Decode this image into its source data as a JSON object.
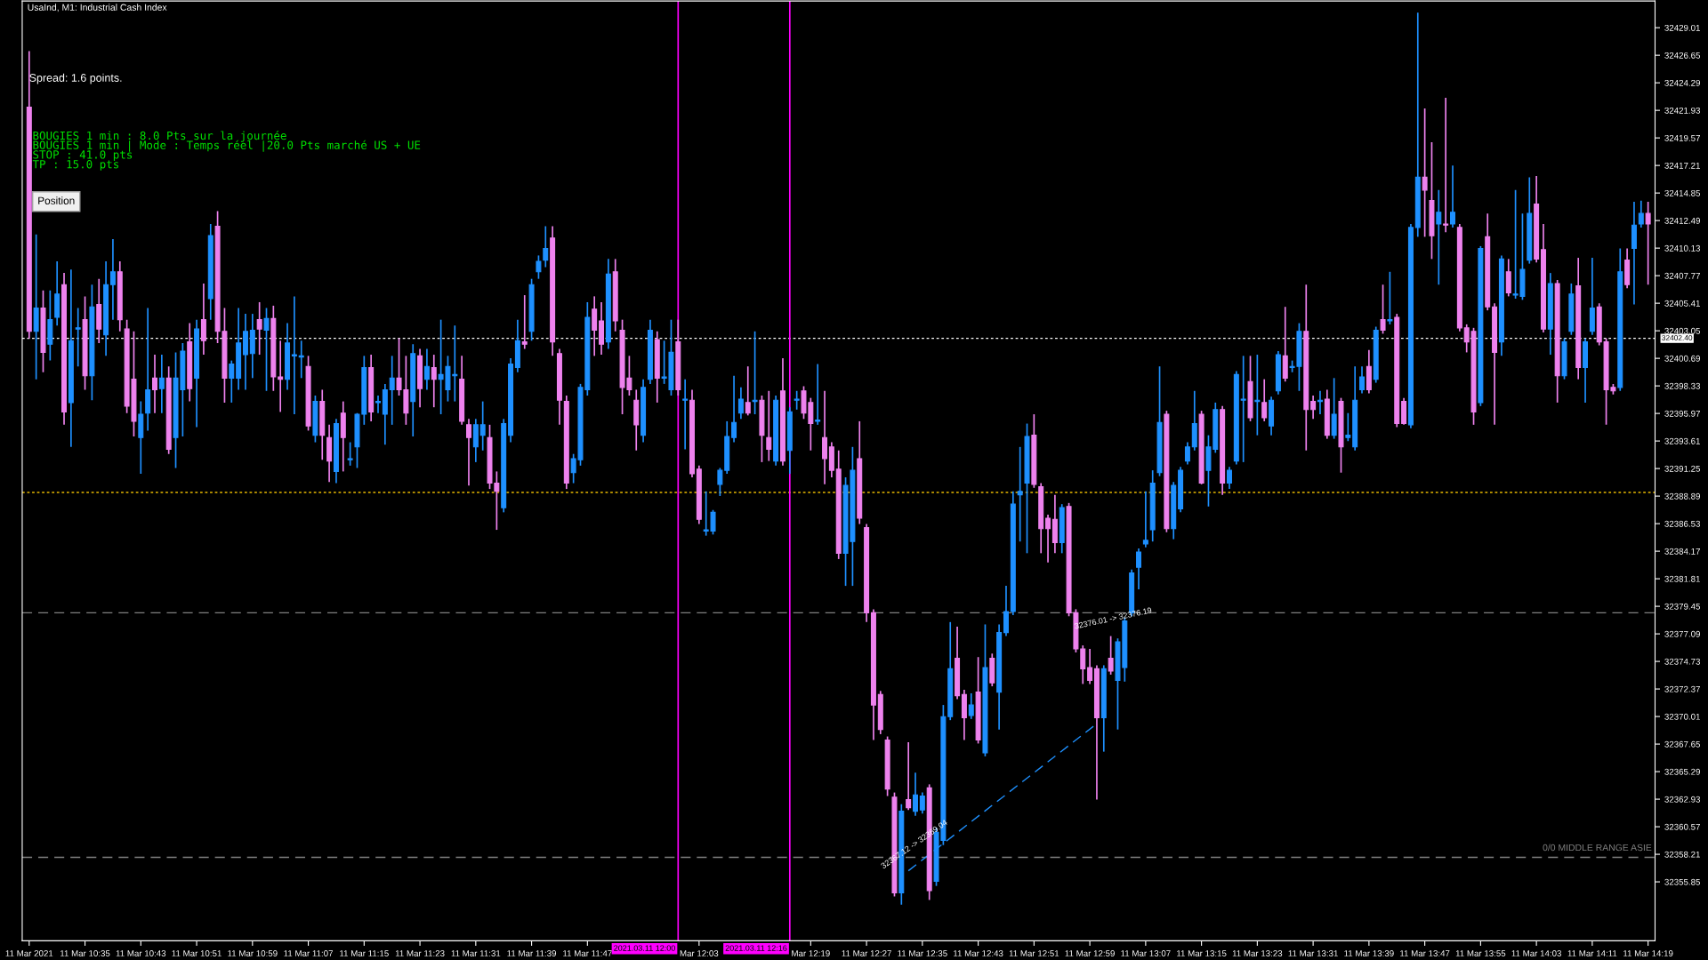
{
  "chart_data": {
    "type": "candlestick",
    "title": "UsaInd, M1: Industrial Cash Index",
    "annotations": [
      "Spread: 1.6 points.",
      "BOUGIES 1 min : 8.0 Pts sur la journée",
      "BOUGIES 1 min | Mode : Temps réel |20.0 Pts marché US + UE",
      "STOP : 41.0 pts",
      "TP : 15.0 pts",
      "Position",
      "32367.12 -> 32369.04",
      "32376.01 -> 32376.19"
    ],
    "x": [
      "2021-03-11T10:27",
      "2021-03-11T10:28",
      "2021-03-11T10:29",
      "2021-03-11T10:30",
      "2021-03-11T10:31",
      "2021-03-11T10:32",
      "2021-03-11T10:33",
      "2021-03-11T10:34",
      "2021-03-11T10:35",
      "2021-03-11T10:36",
      "2021-03-11T10:37",
      "2021-03-11T10:38",
      "2021-03-11T10:39",
      "2021-03-11T10:40",
      "2021-03-11T10:41",
      "2021-03-11T10:42",
      "2021-03-11T10:43",
      "2021-03-11T10:44",
      "2021-03-11T10:45",
      "2021-03-11T10:46",
      "2021-03-11T10:47",
      "2021-03-11T10:48",
      "2021-03-11T10:49",
      "2021-03-11T10:50",
      "2021-03-11T10:51",
      "2021-03-11T10:52",
      "2021-03-11T10:53",
      "2021-03-11T10:54",
      "2021-03-11T10:55",
      "2021-03-11T10:56",
      "2021-03-11T10:57",
      "2021-03-11T10:58",
      "2021-03-11T10:59",
      "2021-03-11T11:00",
      "2021-03-11T11:01",
      "2021-03-11T11:02",
      "2021-03-11T11:03",
      "2021-03-11T11:04",
      "2021-03-11T11:05",
      "2021-03-11T11:06",
      "2021-03-11T11:07",
      "2021-03-11T11:08",
      "2021-03-11T11:09",
      "2021-03-11T11:10",
      "2021-03-11T11:11",
      "2021-03-11T11:12",
      "2021-03-11T11:13",
      "2021-03-11T11:14",
      "2021-03-11T11:15",
      "2021-03-11T11:16",
      "2021-03-11T11:17",
      "2021-03-11T11:18",
      "2021-03-11T11:19",
      "2021-03-11T11:20",
      "2021-03-11T11:21",
      "2021-03-11T11:22",
      "2021-03-11T11:23",
      "2021-03-11T11:24",
      "2021-03-11T11:25",
      "2021-03-11T11:26",
      "2021-03-11T11:27",
      "2021-03-11T11:28",
      "2021-03-11T11:29",
      "2021-03-11T11:30",
      "2021-03-11T11:31",
      "2021-03-11T11:32",
      "2021-03-11T11:33",
      "2021-03-11T11:34",
      "2021-03-11T11:35",
      "2021-03-11T11:36",
      "2021-03-11T11:37",
      "2021-03-11T11:38",
      "2021-03-11T11:39",
      "2021-03-11T11:40",
      "2021-03-11T11:41",
      "2021-03-11T11:42",
      "2021-03-11T11:43",
      "2021-03-11T11:44",
      "2021-03-11T11:45",
      "2021-03-11T11:46",
      "2021-03-11T11:47",
      "2021-03-11T11:48",
      "2021-03-11T11:49",
      "2021-03-11T11:50",
      "2021-03-11T11:51",
      "2021-03-11T11:52",
      "2021-03-11T11:53",
      "2021-03-11T11:54",
      "2021-03-11T11:55",
      "2021-03-11T11:56",
      "2021-03-11T11:57",
      "2021-03-11T11:58",
      "2021-03-11T11:59",
      "2021-03-11T12:00",
      "2021-03-11T12:01",
      "2021-03-11T12:02",
      "2021-03-11T12:03",
      "2021-03-11T12:04",
      "2021-03-11T12:05",
      "2021-03-11T12:06",
      "2021-03-11T12:07",
      "2021-03-11T12:08",
      "2021-03-11T12:09",
      "2021-03-11T12:10",
      "2021-03-11T12:11",
      "2021-03-11T12:12",
      "2021-03-11T12:13",
      "2021-03-11T12:14",
      "2021-03-11T12:15",
      "2021-03-11T12:16",
      "2021-03-11T12:17",
      "2021-03-11T12:18",
      "2021-03-11T12:19",
      "2021-03-11T12:20",
      "2021-03-11T12:21",
      "2021-03-11T12:22",
      "2021-03-11T12:23",
      "2021-03-11T12:24",
      "2021-03-11T12:25",
      "2021-03-11T12:26",
      "2021-03-11T12:27",
      "2021-03-11T12:28",
      "2021-03-11T12:29",
      "2021-03-11T12:30",
      "2021-03-11T12:31",
      "2021-03-11T12:32",
      "2021-03-11T12:33",
      "2021-03-11T12:34",
      "2021-03-11T12:35",
      "2021-03-11T12:36",
      "2021-03-11T12:37",
      "2021-03-11T12:38",
      "2021-03-11T12:39",
      "2021-03-11T12:40",
      "2021-03-11T12:41",
      "2021-03-11T12:42",
      "2021-03-11T12:43",
      "2021-03-11T12:44",
      "2021-03-11T12:45",
      "2021-03-11T12:46",
      "2021-03-11T12:47",
      "2021-03-11T12:48",
      "2021-03-11T12:49",
      "2021-03-11T12:50",
      "2021-03-11T12:51",
      "2021-03-11T12:52",
      "2021-03-11T12:53",
      "2021-03-11T12:54",
      "2021-03-11T12:55",
      "2021-03-11T12:56",
      "2021-03-11T12:57",
      "2021-03-11T12:58",
      "2021-03-11T12:59",
      "2021-03-11T13:00",
      "2021-03-11T13:01",
      "2021-03-11T13:02",
      "2021-03-11T13:03",
      "2021-03-11T13:04",
      "2021-03-11T13:05",
      "2021-03-11T13:06",
      "2021-03-11T13:07",
      "2021-03-11T13:08",
      "2021-03-11T13:09",
      "2021-03-11T13:10",
      "2021-03-11T13:11",
      "2021-03-11T13:12",
      "2021-03-11T13:13",
      "2021-03-11T13:14",
      "2021-03-11T13:15",
      "2021-03-11T13:16",
      "2021-03-11T13:17",
      "2021-03-11T13:18",
      "2021-03-11T13:19",
      "2021-03-11T13:20",
      "2021-03-11T13:21",
      "2021-03-11T13:22",
      "2021-03-11T13:23",
      "2021-03-11T13:24",
      "2021-03-11T13:25",
      "2021-03-11T13:26",
      "2021-03-11T13:27",
      "2021-03-11T13:28",
      "2021-03-11T13:29",
      "2021-03-11T13:30",
      "2021-03-11T13:31",
      "2021-03-11T13:32",
      "2021-03-11T13:33",
      "2021-03-11T13:34",
      "2021-03-11T13:35",
      "2021-03-11T13:36",
      "2021-03-11T13:37",
      "2021-03-11T13:38",
      "2021-03-11T13:39",
      "2021-03-11T13:40",
      "2021-03-11T13:41",
      "2021-03-11T13:42",
      "2021-03-11T13:43",
      "2021-03-11T13:44",
      "2021-03-11T13:45",
      "2021-03-11T13:46",
      "2021-03-11T13:47",
      "2021-03-11T13:48",
      "2021-03-11T13:49",
      "2021-03-11T13:50",
      "2021-03-11T13:51",
      "2021-03-11T13:52",
      "2021-03-11T13:53",
      "2021-03-11T13:54",
      "2021-03-11T13:55",
      "2021-03-11T13:56",
      "2021-03-11T13:57",
      "2021-03-11T13:58",
      "2021-03-11T13:59",
      "2021-03-11T14:00",
      "2021-03-11T14:01",
      "2021-03-11T14:02",
      "2021-03-11T14:03",
      "2021-03-11T14:04",
      "2021-03-11T14:05",
      "2021-03-11T14:06",
      "2021-03-11T14:07",
      "2021-03-11T14:08",
      "2021-03-11T14:09",
      "2021-03-11T14:10",
      "2021-03-11T14:11",
      "2021-03-11T14:12",
      "2021-03-11T14:13",
      "2021-03-11T14:14",
      "2021-03-11T14:15",
      "2021-03-11T14:16",
      "2021-03-11T14:17",
      "2021-03-11T14:18",
      "2021-03-11T14:19"
    ],
    "xlim": [
      "2021-03-11T10:26",
      "2021-03-11T14:20"
    ],
    "xticks": [
      {
        "value": "2021-03-11T10:27",
        "label": "11 Mar 2021"
      },
      {
        "value": "2021-03-11T10:35",
        "label": "11 Mar 10:35"
      },
      {
        "value": "2021-03-11T10:43",
        "label": "11 Mar 10:43"
      },
      {
        "value": "2021-03-11T10:51",
        "label": "11 Mar 10:51"
      },
      {
        "value": "2021-03-11T10:59",
        "label": "11 Mar 10:59"
      },
      {
        "value": "2021-03-11T11:07",
        "label": "11 Mar 11:07"
      },
      {
        "value": "2021-03-11T11:15",
        "label": "11 Mar 11:15"
      },
      {
        "value": "2021-03-11T11:23",
        "label": "11 Mar 11:23"
      },
      {
        "value": "2021-03-11T11:31",
        "label": "11 Mar 11:31"
      },
      {
        "value": "2021-03-11T11:39",
        "label": "11 Mar 11:39"
      },
      {
        "value": "2021-03-11T11:47",
        "label": "11 Mar 11:47"
      },
      {
        "value": "2021-03-11T12:03",
        "label": "Mar 12:03"
      },
      {
        "value": "2021-03-11T12:19",
        "label": "Mar 12:19"
      },
      {
        "value": "2021-03-11T12:27",
        "label": "11 Mar 12:27"
      },
      {
        "value": "2021-03-11T12:35",
        "label": "11 Mar 12:35"
      },
      {
        "value": "2021-03-11T12:43",
        "label": "11 Mar 12:43"
      },
      {
        "value": "2021-03-11T12:51",
        "label": "11 Mar 12:51"
      },
      {
        "value": "2021-03-11T12:59",
        "label": "11 Mar 12:59"
      },
      {
        "value": "2021-03-11T13:07",
        "label": "11 Mar 13:07"
      },
      {
        "value": "2021-03-11T13:15",
        "label": "11 Mar 13:15"
      },
      {
        "value": "2021-03-11T13:23",
        "label": "11 Mar 13:23"
      },
      {
        "value": "2021-03-11T13:31",
        "label": "11 Mar 13:31"
      },
      {
        "value": "2021-03-11T13:39",
        "label": "11 Mar 13:39"
      },
      {
        "value": "2021-03-11T13:47",
        "label": "11 Mar 13:47"
      },
      {
        "value": "2021-03-11T13:55",
        "label": "11 Mar 13:55"
      },
      {
        "value": "2021-03-11T14:03",
        "label": "11 Mar 14:03"
      },
      {
        "value": "2021-03-11T14:11",
        "label": "11 Mar 14:11"
      },
      {
        "value": "2021-03-11T14:19",
        "label": "11 Mar 14:19"
      }
    ],
    "ylim": [
      32350.8,
      32431.3
    ],
    "yticks": [
      32429.01,
      32426.65,
      32424.29,
      32421.93,
      32419.57,
      32417.21,
      32414.85,
      32412.49,
      32410.13,
      32407.77,
      32405.41,
      32403.05,
      32400.69,
      32398.33,
      32395.97,
      32393.61,
      32391.25,
      32388.89,
      32386.53,
      32384.17,
      32381.81,
      32379.45,
      32377.09,
      32374.73,
      32372.37,
      32370.01,
      32367.65,
      32365.29,
      32362.93,
      32360.57,
      32358.21,
      32355.85
    ],
    "grid": false,
    "legend": false,
    "ref_lines": [
      {
        "axis": "y",
        "value": 32402.4,
        "label": "32402.40",
        "color": "#ffffff",
        "line_style": "dotted"
      },
      {
        "axis": "y",
        "value": 32389.2,
        "color": "#e6b800",
        "line_style": "dotted"
      },
      {
        "axis": "y",
        "value": 32378.9,
        "color": "#808080",
        "line_style": "dashed"
      },
      {
        "axis": "y",
        "value": 32357.95,
        "label": "0/0 MIDDLE RANGE ASIE",
        "color": "#808080",
        "line_style": "dashed"
      },
      {
        "axis": "x",
        "value": "2021-03-11T12:00",
        "label": "2021.03.11 12:00",
        "color": "#ff00ff",
        "line_style": "solid"
      },
      {
        "axis": "x",
        "value": "2021-03-11T12:16",
        "label": "2021.03.11 12:16",
        "color": "#ff00ff",
        "line_style": "solid"
      }
    ],
    "series": [
      {
        "type": "line",
        "color": "#1e90ff",
        "line_style": "dashed",
        "x": [
          "2021-03-11T12:33",
          "2021-03-11T13:00"
        ],
        "values": [
          32356.8,
          32369.4
        ]
      }
    ],
    "ohlc": [
      [
        32422.2,
        32427.0,
        32402.4,
        32403.0
      ],
      [
        32403.0,
        32411.3,
        32398.9,
        32405.0
      ],
      [
        32405.0,
        32406.5,
        32399.5,
        32401.2
      ],
      [
        32401.9,
        32406.5,
        32400.5,
        32404.0
      ],
      [
        32404.2,
        32409.0,
        32403.5,
        32406.2
      ],
      [
        32407.0,
        32408.0,
        32395.0,
        32396.1
      ],
      [
        32396.9,
        32408.3,
        32393.1,
        32402.2
      ],
      [
        32403.2,
        32405.0,
        32400.0,
        32403.3
      ],
      [
        32404.0,
        32406.0,
        32398.0,
        32399.2
      ],
      [
        32399.2,
        32407.0,
        32397.1,
        32405.1
      ],
      [
        32405.3,
        32407.5,
        32402.0,
        32403.2
      ],
      [
        32402.7,
        32409.0,
        32400.9,
        32407.0
      ],
      [
        32407.0,
        32410.9,
        32404.0,
        32408.1
      ],
      [
        32408.1,
        32409.0,
        32403.0,
        32404.0
      ],
      [
        32403.2,
        32404.0,
        32396.0,
        32396.6
      ],
      [
        32398.9,
        32403.0,
        32394.0,
        32395.3
      ],
      [
        32393.9,
        32397.0,
        32390.8,
        32395.9
      ],
      [
        32396.0,
        32405.0,
        32394.5,
        32398.0
      ],
      [
        32399.0,
        32401.0,
        32396.0,
        32398.0
      ],
      [
        32398.1,
        32401.0,
        32396.0,
        32399.0
      ],
      [
        32399.0,
        32400.0,
        32392.5,
        32392.9
      ],
      [
        32393.9,
        32401.2,
        32391.3,
        32399.0
      ],
      [
        32398.0,
        32402.0,
        32394.0,
        32401.3
      ],
      [
        32402.1,
        32403.7,
        32397.0,
        32398.1
      ],
      [
        32399.0,
        32404.0,
        32394.8,
        32403.2
      ],
      [
        32404.0,
        32407.1,
        32401.0,
        32402.2
      ],
      [
        32405.8,
        32412.2,
        32404.0,
        32411.2
      ],
      [
        32412.0,
        32413.3,
        32402.0,
        32403.0
      ],
      [
        32403.0,
        32405.0,
        32396.9,
        32399.0
      ],
      [
        32399.0,
        32400.5,
        32396.9,
        32400.2
      ],
      [
        32399.0,
        32405.0,
        32398.0,
        32402.0
      ],
      [
        32401.0,
        32404.5,
        32398.0,
        32403.0
      ],
      [
        32401.1,
        32404.5,
        32399.0,
        32403.1
      ],
      [
        32404.0,
        32405.5,
        32401.0,
        32403.2
      ],
      [
        32403.1,
        32405.0,
        32397.9,
        32404.1
      ],
      [
        32404.1,
        32405.2,
        32397.9,
        32399.1
      ],
      [
        32399.1,
        32402.2,
        32396.1,
        32398.9
      ],
      [
        32398.9,
        32403.7,
        32398.0,
        32402.0
      ],
      [
        32400.9,
        32406.0,
        32395.9,
        32401.0
      ],
      [
        32400.8,
        32402.2,
        32399.0,
        32400.9
      ],
      [
        32400.0,
        32400.9,
        32394.5,
        32394.9
      ],
      [
        32394.1,
        32397.5,
        32393.5,
        32397.0
      ],
      [
        32397.0,
        32398.0,
        32392.0,
        32394.1
      ],
      [
        32393.9,
        32395.0,
        32390.1,
        32391.9
      ],
      [
        32391.0,
        32395.5,
        32390.0,
        32395.1
      ],
      [
        32396.0,
        32397.0,
        32391.0,
        32393.9
      ],
      [
        32392.0,
        32393.5,
        32391.5,
        32392.1
      ],
      [
        32393.1,
        32396.0,
        32391.3,
        32395.9
      ],
      [
        32395.9,
        32400.9,
        32395.0,
        32399.9
      ],
      [
        32399.9,
        32401.0,
        32395.3,
        32396.1
      ],
      [
        32396.9,
        32397.5,
        32396.0,
        32397.0
      ],
      [
        32395.9,
        32398.5,
        32393.3,
        32398.0
      ],
      [
        32398.0,
        32400.9,
        32395.0,
        32399.0
      ],
      [
        32399.0,
        32402.4,
        32397.5,
        32398.0
      ],
      [
        32398.0,
        32400.9,
        32395.0,
        32396.0
      ],
      [
        32397.0,
        32401.9,
        32394.0,
        32401.1
      ],
      [
        32400.9,
        32401.5,
        32396.5,
        32398.1
      ],
      [
        32398.9,
        32401.5,
        32398.0,
        32400.0
      ],
      [
        32399.9,
        32401.0,
        32396.5,
        32398.9
      ],
      [
        32398.9,
        32404.0,
        32395.9,
        32399.3
      ],
      [
        32398.0,
        32400.9,
        32397.0,
        32400.0
      ],
      [
        32399.2,
        32403.5,
        32397.0,
        32399.3
      ],
      [
        32398.9,
        32400.9,
        32395.0,
        32395.3
      ],
      [
        32395.0,
        32395.5,
        32389.8,
        32393.9
      ],
      [
        32393.1,
        32395.5,
        32391.8,
        32395.0
      ],
      [
        32394.1,
        32397.0,
        32392.8,
        32395.0
      ],
      [
        32393.9,
        32395.0,
        32389.5,
        32390.0
      ],
      [
        32390.0,
        32391.0,
        32386.0,
        32389.3
      ],
      [
        32387.9,
        32395.5,
        32387.5,
        32395.1
      ],
      [
        32394.1,
        32400.7,
        32393.5,
        32400.2
      ],
      [
        32399.9,
        32404.0,
        32399.5,
        32402.2
      ],
      [
        32402.1,
        32406.1,
        32401.5,
        32401.9
      ],
      [
        32403.0,
        32407.5,
        32402.2,
        32407.0
      ],
      [
        32408.1,
        32409.5,
        32407.5,
        32409.0
      ],
      [
        32409.1,
        32412.0,
        32408.5,
        32410.1
      ],
      [
        32411.0,
        32412.0,
        32400.9,
        32402.1
      ],
      [
        32401.1,
        32401.5,
        32395.0,
        32397.1
      ],
      [
        32397.0,
        32397.5,
        32389.5,
        32390.0
      ],
      [
        32390.9,
        32392.5,
        32390.0,
        32392.1
      ],
      [
        32392.0,
        32398.5,
        32391.5,
        32398.2
      ],
      [
        32398.0,
        32405.5,
        32397.5,
        32404.2
      ],
      [
        32404.9,
        32406.0,
        32400.9,
        32403.1
      ],
      [
        32403.9,
        32405.5,
        32401.0,
        32401.9
      ],
      [
        32402.1,
        32409.2,
        32401.5,
        32407.9
      ],
      [
        32408.1,
        32409.2,
        32403.0,
        32403.9
      ],
      [
        32403.1,
        32404.0,
        32395.9,
        32398.2
      ],
      [
        32399.0,
        32400.9,
        32397.5,
        32398.0
      ],
      [
        32397.1,
        32398.0,
        32392.8,
        32395.0
      ],
      [
        32394.1,
        32398.9,
        32393.5,
        32398.2
      ],
      [
        32398.9,
        32404.0,
        32398.5,
        32403.1
      ],
      [
        32402.3,
        32403.0,
        32396.9,
        32399.0
      ],
      [
        32399.0,
        32402.2,
        32398.5,
        32399.1
      ],
      [
        32398.0,
        32404.0,
        32397.5,
        32401.2
      ],
      [
        32402.1,
        32404.0,
        32397.5,
        32398.0
      ],
      [
        32397.1,
        32398.9,
        32392.9,
        32397.2
      ],
      [
        32397.1,
        32398.0,
        32390.5,
        32390.8
      ],
      [
        32391.2,
        32391.5,
        32386.5,
        32386.9
      ],
      [
        32385.9,
        32389.3,
        32385.5,
        32386.0
      ],
      [
        32385.9,
        32387.7,
        32385.6,
        32387.5
      ],
      [
        32389.9,
        32391.3,
        32388.9,
        32391.1
      ],
      [
        32391.1,
        32395.3,
        32390.8,
        32394.0
      ],
      [
        32393.9,
        32399.2,
        32393.5,
        32395.2
      ],
      [
        32396.0,
        32398.2,
        32395.5,
        32397.2
      ],
      [
        32396.9,
        32400.0,
        32395.8,
        32396.0
      ],
      [
        32397.0,
        32403.0,
        32395.9,
        32397.1
      ],
      [
        32397.1,
        32397.5,
        32391.8,
        32394.1
      ],
      [
        32393.9,
        32397.9,
        32391.9,
        32392.9
      ],
      [
        32391.9,
        32397.5,
        32391.5,
        32397.1
      ],
      [
        32397.9,
        32400.7,
        32391.5,
        32391.9
      ],
      [
        32392.8,
        32396.5,
        32390.8,
        32396.1
      ],
      [
        32397.1,
        32397.9,
        32396.3,
        32397.2
      ],
      [
        32397.9,
        32398.3,
        32395.5,
        32396.0
      ],
      [
        32396.9,
        32397.3,
        32392.8,
        32395.1
      ],
      [
        32395.3,
        32400.2,
        32395.0,
        32395.4
      ],
      [
        32393.9,
        32397.9,
        32389.9,
        32392.1
      ],
      [
        32393.1,
        32393.5,
        32390.5,
        32391.1
      ],
      [
        32391.2,
        32392.8,
        32383.5,
        32384.0
      ],
      [
        32384.0,
        32390.5,
        32381.2,
        32389.8
      ],
      [
        32385.0,
        32393.1,
        32381.2,
        32391.1
      ],
      [
        32392.1,
        32395.3,
        32386.5,
        32387.0
      ],
      [
        32386.2,
        32386.5,
        32378.1,
        32378.9
      ],
      [
        32378.9,
        32379.2,
        32368.0,
        32371.0
      ],
      [
        32371.9,
        32372.2,
        32368.5,
        32368.9
      ],
      [
        32368.0,
        32368.3,
        32363.2,
        32363.8
      ],
      [
        32363.1,
        32363.5,
        32354.6,
        32354.9
      ],
      [
        32354.9,
        32362.5,
        32353.9,
        32361.9
      ],
      [
        32362.9,
        32367.8,
        32362.0,
        32362.2
      ],
      [
        32361.9,
        32365.2,
        32361.5,
        32363.3
      ],
      [
        32362.0,
        32363.5,
        32361.7,
        32363.2
      ],
      [
        32363.9,
        32364.2,
        32354.3,
        32355.1
      ],
      [
        32355.9,
        32360.5,
        32355.5,
        32360.1
      ],
      [
        32359.4,
        32371.0,
        32359.0,
        32370.0
      ],
      [
        32370.0,
        32378.1,
        32369.7,
        32374.1
      ],
      [
        32375.0,
        32377.7,
        32371.5,
        32371.8
      ],
      [
        32371.9,
        32372.3,
        32368.0,
        32369.9
      ],
      [
        32370.1,
        32372.0,
        32369.8,
        32371.0
      ],
      [
        32372.1,
        32375.1,
        32367.7,
        32368.0
      ],
      [
        32366.9,
        32377.9,
        32366.6,
        32374.2
      ],
      [
        32375.0,
        32375.4,
        32372.6,
        32372.9
      ],
      [
        32372.1,
        32377.9,
        32368.9,
        32377.2
      ],
      [
        32377.2,
        32381.2,
        32376.9,
        32379.0
      ],
      [
        32379.0,
        32389.3,
        32378.7,
        32388.2
      ],
      [
        32389.0,
        32393.1,
        32385.0,
        32389.3
      ],
      [
        32390.0,
        32395.1,
        32384.0,
        32394.0
      ],
      [
        32394.1,
        32395.9,
        32389.6,
        32389.9
      ],
      [
        32389.7,
        32390.0,
        32384.0,
        32386.1
      ],
      [
        32387.0,
        32387.3,
        32383.2,
        32386.1
      ],
      [
        32386.9,
        32389.0,
        32384.0,
        32384.9
      ],
      [
        32384.9,
        32388.2,
        32384.0,
        32387.9
      ],
      [
        32388.0,
        32388.3,
        32378.6,
        32378.9
      ],
      [
        32378.9,
        32379.2,
        32375.5,
        32375.8
      ],
      [
        32375.8,
        32376.1,
        32372.8,
        32374.1
      ],
      [
        32374.2,
        32375.8,
        32372.8,
        32373.1
      ],
      [
        32374.1,
        32374.4,
        32362.9,
        32369.9
      ],
      [
        32369.9,
        32374.4,
        32367.0,
        32374.1
      ],
      [
        32375.0,
        32376.9,
        32373.6,
        32373.9
      ],
      [
        32373.1,
        32376.7,
        32368.9,
        32376.4
      ],
      [
        32374.2,
        32378.5,
        32373.0,
        32378.2
      ],
      [
        32378.9,
        32382.6,
        32378.6,
        32382.3
      ],
      [
        32382.8,
        32384.4,
        32380.9,
        32384.1
      ],
      [
        32384.8,
        32389.3,
        32384.5,
        32385.1
      ],
      [
        32386.0,
        32391.1,
        32385.0,
        32390.0
      ],
      [
        32390.9,
        32400.0,
        32390.6,
        32395.2
      ],
      [
        32395.9,
        32396.2,
        32385.8,
        32386.1
      ],
      [
        32386.1,
        32390.1,
        32385.2,
        32389.8
      ],
      [
        32387.8,
        32391.4,
        32387.5,
        32391.1
      ],
      [
        32391.9,
        32393.5,
        32391.6,
        32393.1
      ],
      [
        32393.1,
        32397.9,
        32392.8,
        32395.1
      ],
      [
        32395.9,
        32396.2,
        32389.9,
        32390.0
      ],
      [
        32391.1,
        32394.1,
        32388.0,
        32393.1
      ],
      [
        32392.9,
        32396.9,
        32392.6,
        32396.3
      ],
      [
        32396.3,
        32396.6,
        32389.0,
        32390.0
      ],
      [
        32390.0,
        32391.4,
        32389.5,
        32391.1
      ],
      [
        32391.9,
        32399.6,
        32391.6,
        32399.3
      ],
      [
        32397.1,
        32400.9,
        32391.8,
        32397.2
      ],
      [
        32398.7,
        32400.9,
        32395.3,
        32395.6
      ],
      [
        32397.0,
        32401.0,
        32394.1,
        32397.1
      ],
      [
        32396.9,
        32398.9,
        32395.3,
        32395.6
      ],
      [
        32394.9,
        32397.4,
        32394.1,
        32397.1
      ],
      [
        32397.9,
        32401.3,
        32397.6,
        32401.0
      ],
      [
        32400.9,
        32405.1,
        32398.7,
        32399.0
      ],
      [
        32399.9,
        32400.5,
        32399.5,
        32400.0
      ],
      [
        32400.0,
        32403.7,
        32397.9,
        32403.0
      ],
      [
        32403.0,
        32407.0,
        32392.8,
        32396.3
      ],
      [
        32397.0,
        32397.5,
        32395.5,
        32396.3
      ],
      [
        32397.0,
        32397.9,
        32395.9,
        32397.1
      ],
      [
        32397.2,
        32398.0,
        32393.8,
        32394.1
      ],
      [
        32394.1,
        32399.0,
        32393.8,
        32395.9
      ],
      [
        32397.0,
        32397.3,
        32390.9,
        32393.1
      ],
      [
        32393.9,
        32396.0,
        32393.6,
        32394.1
      ],
      [
        32393.1,
        32400.0,
        32392.8,
        32397.1
      ],
      [
        32398.0,
        32400.0,
        32397.7,
        32399.1
      ],
      [
        32400.0,
        32401.4,
        32397.7,
        32398.0
      ],
      [
        32398.9,
        32403.4,
        32398.6,
        32403.1
      ],
      [
        32404.0,
        32407.0,
        32402.8,
        32403.1
      ],
      [
        32403.9,
        32408.1,
        32403.6,
        32404.0
      ],
      [
        32404.2,
        32404.5,
        32394.8,
        32395.1
      ],
      [
        32397.0,
        32397.3,
        32395.0,
        32395.1
      ],
      [
        32395.0,
        32412.2,
        32394.7,
        32411.9
      ],
      [
        32411.9,
        32430.3,
        32411.1,
        32416.2
      ],
      [
        32416.2,
        32422.1,
        32411.1,
        32415.1
      ],
      [
        32414.2,
        32419.2,
        32409.2,
        32411.2
      ],
      [
        32412.2,
        32415.1,
        32407.0,
        32413.2
      ],
      [
        32412.2,
        32423.0,
        32411.5,
        32412.1
      ],
      [
        32412.2,
        32417.2,
        32411.9,
        32413.2
      ],
      [
        32411.9,
        32412.2,
        32403.0,
        32403.3
      ],
      [
        32403.3,
        32403.6,
        32401.2,
        32402.1
      ],
      [
        32403.0,
        32403.3,
        32395.0,
        32396.1
      ],
      [
        32396.9,
        32410.3,
        32396.6,
        32410.1
      ],
      [
        32411.1,
        32413.1,
        32404.8,
        32405.1
      ],
      [
        32405.1,
        32405.4,
        32395.0,
        32401.2
      ],
      [
        32402.1,
        32409.5,
        32400.9,
        32409.2
      ],
      [
        32408.1,
        32409.2,
        32406.0,
        32406.3
      ],
      [
        32406.1,
        32415.1,
        32405.8,
        32406.2
      ],
      [
        32406.0,
        32413.1,
        32405.7,
        32408.3
      ],
      [
        32409.1,
        32416.2,
        32408.8,
        32413.1
      ],
      [
        32413.9,
        32416.3,
        32408.9,
        32409.2
      ],
      [
        32410.0,
        32412.2,
        32402.9,
        32403.2
      ],
      [
        32403.2,
        32408.0,
        32401.0,
        32407.1
      ],
      [
        32407.1,
        32407.4,
        32396.9,
        32399.2
      ],
      [
        32399.2,
        32402.4,
        32398.9,
        32402.1
      ],
      [
        32403.0,
        32407.1,
        32402.7,
        32406.2
      ],
      [
        32406.9,
        32409.3,
        32398.9,
        32399.9
      ],
      [
        32399.9,
        32402.4,
        32396.9,
        32402.1
      ],
      [
        32403.0,
        32409.3,
        32402.7,
        32405.0
      ],
      [
        32405.1,
        32405.4,
        32401.8,
        32402.1
      ],
      [
        32402.1,
        32402.4,
        32395.0,
        32398.0
      ],
      [
        32398.2,
        32398.5,
        32397.6,
        32397.9
      ],
      [
        32398.2,
        32410.1,
        32397.9,
        32408.1
      ],
      [
        32409.1,
        32410.1,
        32406.7,
        32407.0
      ],
      [
        32410.1,
        32414.1,
        32405.3,
        32412.1
      ],
      [
        32412.2,
        32414.2,
        32411.9,
        32413.1
      ],
      [
        32413.1,
        32414.1,
        32407.0,
        32412.2
      ]
    ],
    "colors": [
      "#ee82ee",
      "#1e90ff",
      "#ee82ee",
      "#1e90ff",
      "#1e90ff",
      "#ee82ee",
      "#1e90ff",
      "#1e90ff",
      "#ee82ee",
      "#1e90ff",
      "#ee82ee",
      "#1e90ff",
      "#1e90ff",
      "#ee82ee",
      "#ee82ee",
      "#ee82ee",
      "#1e90ff",
      "#1e90ff",
      "#ee82ee",
      "#1e90ff",
      "#ee82ee",
      "#1e90ff",
      "#1e90ff",
      "#ee82ee",
      "#1e90ff",
      "#ee82ee",
      "#1e90ff",
      "#ee82ee",
      "#ee82ee",
      "#1e90ff",
      "#1e90ff",
      "#1e90ff",
      "#1e90ff",
      "#ee82ee",
      "#1e90ff",
      "#ee82ee",
      "#ee82ee",
      "#1e90ff",
      "#1e90ff",
      "#1e90ff",
      "#ee82ee",
      "#1e90ff",
      "#ee82ee",
      "#ee82ee",
      "#1e90ff",
      "#ee82ee",
      "#1e90ff",
      "#1e90ff",
      "#1e90ff",
      "#ee82ee",
      "#1e90ff",
      "#1e90ff",
      "#1e90ff",
      "#ee82ee",
      "#ee82ee",
      "#1e90ff",
      "#ee82ee",
      "#1e90ff",
      "#ee82ee",
      "#1e90ff",
      "#1e90ff",
      "#1e90ff",
      "#ee82ee",
      "#ee82ee",
      "#1e90ff",
      "#1e90ff",
      "#ee82ee",
      "#ee82ee",
      "#1e90ff",
      "#1e90ff",
      "#1e90ff",
      "#ee82ee",
      "#1e90ff",
      "#1e90ff",
      "#1e90ff",
      "#ee82ee",
      "#ee82ee",
      "#ee82ee",
      "#1e90ff",
      "#1e90ff",
      "#1e90ff",
      "#ee82ee",
      "#ee82ee",
      "#1e90ff",
      "#ee82ee",
      "#ee82ee",
      "#ee82ee",
      "#ee82ee",
      "#1e90ff",
      "#1e90ff",
      "#ee82ee",
      "#1e90ff",
      "#1e90ff",
      "#ee82ee",
      "#1e90ff",
      "#ee82ee",
      "#ee82ee",
      "#1e90ff",
      "#1e90ff",
      "#1e90ff",
      "#1e90ff",
      "#1e90ff",
      "#1e90ff",
      "#ee82ee",
      "#1e90ff",
      "#ee82ee",
      "#ee82ee",
      "#1e90ff",
      "#ee82ee",
      "#1e90ff",
      "#1e90ff",
      "#ee82ee",
      "#ee82ee",
      "#1e90ff",
      "#ee82ee",
      "#ee82ee",
      "#ee82ee",
      "#1e90ff",
      "#1e90ff",
      "#ee82ee",
      "#ee82ee",
      "#ee82ee",
      "#ee82ee",
      "#ee82ee",
      "#ee82ee",
      "#1e90ff",
      "#ee82ee",
      "#1e90ff",
      "#1e90ff",
      "#ee82ee",
      "#1e90ff",
      "#1e90ff",
      "#1e90ff",
      "#ee82ee",
      "#ee82ee",
      "#1e90ff",
      "#ee82ee",
      "#1e90ff",
      "#ee82ee",
      "#1e90ff",
      "#1e90ff",
      "#1e90ff",
      "#1e90ff",
      "#1e90ff",
      "#ee82ee",
      "#ee82ee",
      "#ee82ee",
      "#ee82ee",
      "#1e90ff",
      "#ee82ee",
      "#ee82ee",
      "#ee82ee",
      "#ee82ee",
      "#ee82ee",
      "#1e90ff",
      "#ee82ee",
      "#1e90ff",
      "#1e90ff",
      "#1e90ff",
      "#1e90ff",
      "#1e90ff",
      "#1e90ff",
      "#1e90ff",
      "#ee82ee",
      "#1e90ff",
      "#1e90ff",
      "#1e90ff",
      "#1e90ff",
      "#ee82ee",
      "#1e90ff",
      "#1e90ff",
      "#ee82ee",
      "#1e90ff",
      "#1e90ff",
      "#1e90ff",
      "#ee82ee",
      "#1e90ff",
      "#ee82ee",
      "#1e90ff",
      "#1e90ff",
      "#ee82ee",
      "#1e90ff",
      "#1e90ff",
      "#ee82ee",
      "#ee82ee",
      "#1e90ff",
      "#ee82ee",
      "#1e90ff",
      "#ee82ee",
      "#1e90ff",
      "#1e90ff",
      "#1e90ff",
      "#ee82ee",
      "#1e90ff",
      "#ee82ee",
      "#1e90ff",
      "#ee82ee",
      "#ee82ee",
      "#1e90ff",
      "#1e90ff",
      "#ee82ee",
      "#ee82ee",
      "#1e90ff",
      "#ee82ee",
      "#1e90ff",
      "#ee82ee",
      "#ee82ee",
      "#ee82ee",
      "#1e90ff",
      "#ee82ee",
      "#ee82ee",
      "#1e90ff",
      "#ee82ee",
      "#1e90ff",
      "#1e90ff",
      "#1e90ff",
      "#ee82ee",
      "#ee82ee",
      "#1e90ff",
      "#ee82ee",
      "#1e90ff",
      "#1e90ff",
      "#ee82ee",
      "#1e90ff",
      "#1e90ff",
      "#ee82ee",
      "#ee82ee",
      "#ee82ee",
      "#1e90ff",
      "#ee82ee",
      "#1e90ff",
      "#1e90ff",
      "#ee82ee"
    ]
  }
}
